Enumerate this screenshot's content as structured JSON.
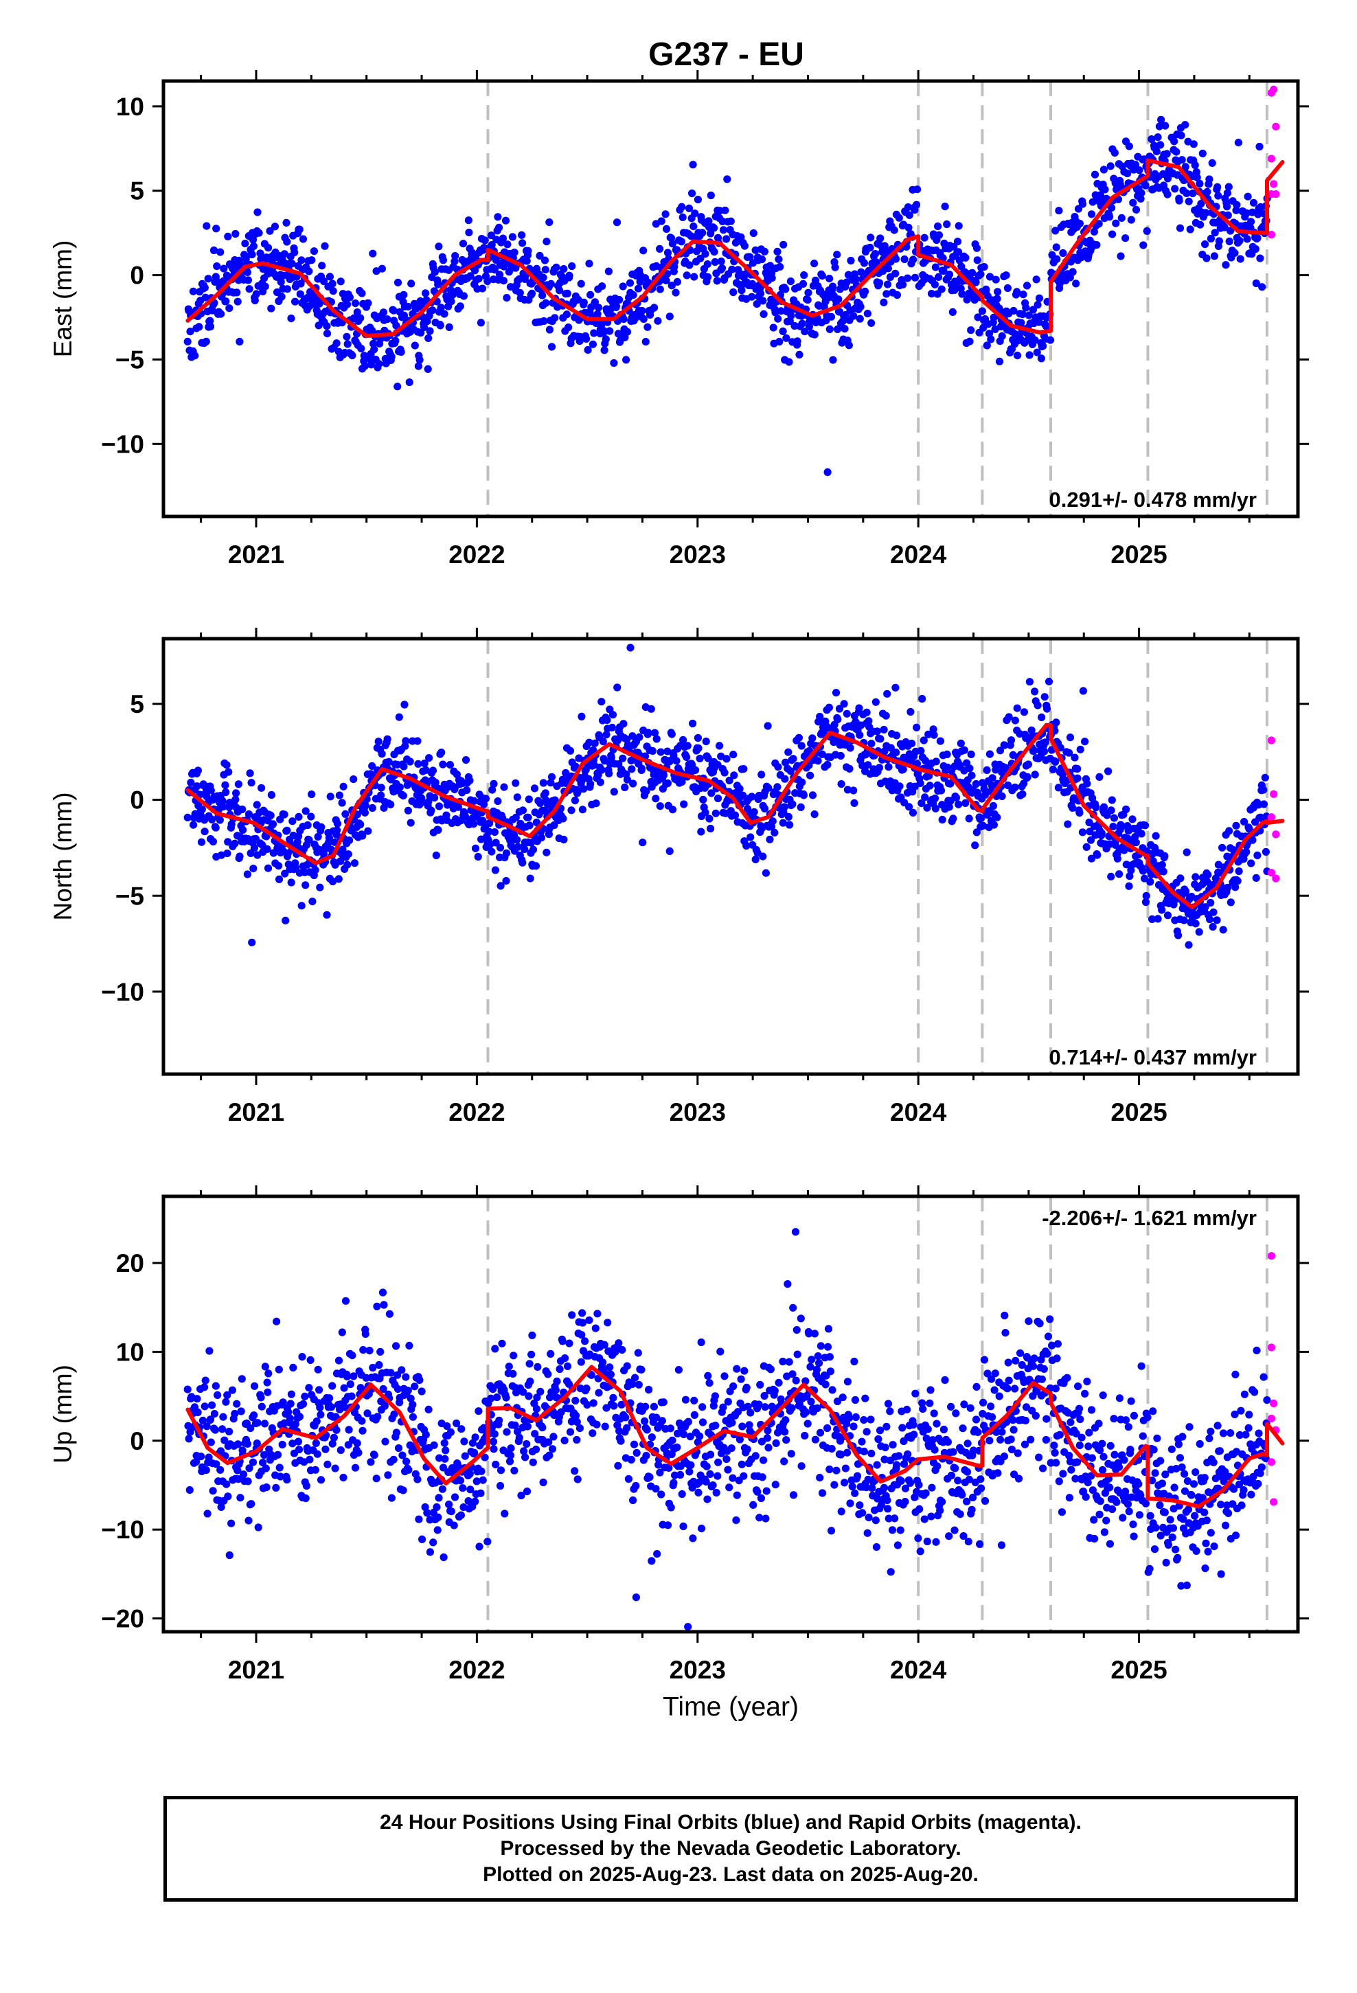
{
  "title": "G237 - EU",
  "colors": {
    "final_orbits": "#0000ff",
    "rapid_orbits": "#ff00ff",
    "model": "#ff0000",
    "events": "#c0c0c0",
    "frame": "#000000"
  },
  "footer": {
    "line1": "24 Hour Positions Using Final Orbits (blue) and Rapid Orbits (magenta).",
    "line2": "Processed by the Nevada Geodetic Laboratory.",
    "line3": "Plotted on 2025-Aug-23. Last data on 2025-Aug-20."
  },
  "chart_data": [
    {
      "type": "scatter",
      "component": "east",
      "ylabel": "East (mm)",
      "xlim": [
        2020.58,
        2025.72
      ],
      "ylim": [
        -14.3,
        11.5
      ],
      "yticks": [
        -10,
        -5,
        0,
        5,
        10
      ],
      "xticks": [
        2021,
        2022,
        2023,
        2024,
        2025
      ],
      "grid": false,
      "rate_label": "0.291+/- 0.478 mm/yr",
      "rate_label_position": "bottom-right",
      "event_lines": [
        2022.05,
        2024.0,
        2024.29,
        2024.6,
        2025.04,
        2025.58
      ],
      "series": [
        {
          "role": "final",
          "x_start": 2020.69,
          "x_end": 2025.58,
          "seed": 11,
          "noise": 1.3,
          "n": 1700
        },
        {
          "role": "rapid",
          "points": [
            [
              2025.6,
              10.8
            ],
            [
              2025.61,
              11.0
            ],
            [
              2025.62,
              8.8
            ],
            [
              2025.6,
              6.9
            ],
            [
              2025.61,
              5.4
            ],
            [
              2025.6,
              4.8
            ],
            [
              2025.62,
              4.8
            ],
            [
              2025.6,
              2.4
            ]
          ]
        }
      ],
      "model": [
        [
          2020.69,
          -2.7
        ],
        [
          2020.82,
          -1.2
        ],
        [
          2020.95,
          0.5
        ],
        [
          2021.03,
          0.7
        ],
        [
          2021.2,
          0.1
        ],
        [
          2021.35,
          -2.1
        ],
        [
          2021.5,
          -3.6
        ],
        [
          2021.62,
          -3.5
        ],
        [
          2021.75,
          -2.2
        ],
        [
          2021.9,
          0.0
        ],
        [
          2022.02,
          0.9
        ],
        [
          2022.05,
          0.9
        ],
        [
          2022.05,
          1.5
        ],
        [
          2022.2,
          0.6
        ],
        [
          2022.35,
          -1.4
        ],
        [
          2022.5,
          -2.6
        ],
        [
          2022.62,
          -2.6
        ],
        [
          2022.75,
          -1.3
        ],
        [
          2022.88,
          0.8
        ],
        [
          2022.98,
          2.0
        ],
        [
          2023.1,
          1.9
        ],
        [
          2023.25,
          0.1
        ],
        [
          2023.38,
          -1.6
        ],
        [
          2023.52,
          -2.4
        ],
        [
          2023.65,
          -1.8
        ],
        [
          2023.8,
          0.2
        ],
        [
          2023.95,
          2.1
        ],
        [
          2024.0,
          2.3
        ],
        [
          2024.0,
          1.2
        ],
        [
          2024.15,
          0.6
        ],
        [
          2024.29,
          -1.3
        ],
        [
          2024.29,
          -1.5
        ],
        [
          2024.42,
          -3.0
        ],
        [
          2024.55,
          -3.4
        ],
        [
          2024.6,
          -3.3
        ],
        [
          2024.6,
          -0.4
        ],
        [
          2024.72,
          1.9
        ],
        [
          2024.88,
          4.6
        ],
        [
          2025.03,
          5.8
        ],
        [
          2025.04,
          5.9
        ],
        [
          2025.04,
          6.8
        ],
        [
          2025.18,
          6.4
        ],
        [
          2025.32,
          4.1
        ],
        [
          2025.45,
          2.6
        ],
        [
          2025.56,
          2.5
        ],
        [
          2025.58,
          2.5
        ],
        [
          2025.58,
          5.6
        ],
        [
          2025.65,
          6.7
        ]
      ]
    },
    {
      "type": "scatter",
      "component": "north",
      "ylabel": "North (mm)",
      "xlim": [
        2020.58,
        2025.72
      ],
      "ylim": [
        -14.3,
        8.4
      ],
      "yticks": [
        -10,
        -5,
        0,
        5
      ],
      "xticks": [
        2021,
        2022,
        2023,
        2024,
        2025
      ],
      "grid": false,
      "rate_label": "0.714+/- 0.437 mm/yr",
      "rate_label_position": "bottom-right",
      "event_lines": [
        2022.05,
        2024.0,
        2024.29,
        2024.6,
        2025.04,
        2025.58
      ],
      "series": [
        {
          "role": "final",
          "x_start": 2020.69,
          "x_end": 2025.58,
          "seed": 23,
          "noise": 1.1,
          "n": 1700
        },
        {
          "role": "rapid",
          "points": [
            [
              2025.6,
              3.1
            ],
            [
              2025.61,
              0.3
            ],
            [
              2025.6,
              -0.9
            ],
            [
              2025.62,
              -1.8
            ],
            [
              2025.6,
              -3.8
            ],
            [
              2025.62,
              -4.1
            ]
          ]
        }
      ],
      "model": [
        [
          2020.69,
          0.5
        ],
        [
          2020.82,
          -0.7
        ],
        [
          2020.99,
          -1.2
        ],
        [
          2021.12,
          -2.2
        ],
        [
          2021.27,
          -3.3
        ],
        [
          2021.35,
          -2.9
        ],
        [
          2021.45,
          -0.4
        ],
        [
          2021.57,
          1.6
        ],
        [
          2021.7,
          1.1
        ],
        [
          2021.85,
          0.2
        ],
        [
          2022.02,
          -0.5
        ],
        [
          2022.05,
          -0.6
        ],
        [
          2022.05,
          -0.9
        ],
        [
          2022.15,
          -1.4
        ],
        [
          2022.24,
          -1.9
        ],
        [
          2022.35,
          -0.6
        ],
        [
          2022.48,
          1.9
        ],
        [
          2022.6,
          2.9
        ],
        [
          2022.75,
          2.1
        ],
        [
          2022.9,
          1.4
        ],
        [
          2023.05,
          1.0
        ],
        [
          2023.16,
          0.1
        ],
        [
          2023.24,
          -1.2
        ],
        [
          2023.32,
          -0.9
        ],
        [
          2023.45,
          1.4
        ],
        [
          2023.6,
          3.5
        ],
        [
          2023.72,
          3.0
        ],
        [
          2023.85,
          2.2
        ],
        [
          2023.98,
          1.7
        ],
        [
          2024.0,
          1.6
        ],
        [
          2024.15,
          1.2
        ],
        [
          2024.27,
          -0.5
        ],
        [
          2024.29,
          -0.6
        ],
        [
          2024.29,
          -0.5
        ],
        [
          2024.42,
          1.6
        ],
        [
          2024.58,
          3.9
        ],
        [
          2024.6,
          3.9
        ],
        [
          2024.6,
          3.2
        ],
        [
          2024.75,
          -0.3
        ],
        [
          2024.9,
          -2.0
        ],
        [
          2025.03,
          -2.9
        ],
        [
          2025.04,
          -2.9
        ],
        [
          2025.04,
          -3.3
        ],
        [
          2025.15,
          -4.8
        ],
        [
          2025.24,
          -5.6
        ],
        [
          2025.35,
          -4.6
        ],
        [
          2025.48,
          -2.1
        ],
        [
          2025.56,
          -1.2
        ],
        [
          2025.58,
          -1.1
        ],
        [
          2025.58,
          -1.2
        ],
        [
          2025.65,
          -1.1
        ]
      ]
    },
    {
      "type": "scatter",
      "component": "up",
      "ylabel": "Up (mm)",
      "xlim": [
        2020.58,
        2025.72
      ],
      "ylim": [
        -21.5,
        27.5
      ],
      "yticks": [
        -20,
        -10,
        0,
        10,
        20
      ],
      "xticks": [
        2021,
        2022,
        2023,
        2024,
        2025
      ],
      "xlabel": "Time (year)",
      "grid": false,
      "rate_label": "-2.206+/- 1.621 mm/yr",
      "rate_label_position": "top-right",
      "event_lines": [
        2022.05,
        2024.0,
        2024.29,
        2024.6,
        2025.04,
        2025.58
      ],
      "series": [
        {
          "role": "final",
          "x_start": 2020.69,
          "x_end": 2025.58,
          "seed": 37,
          "noise": 4.2,
          "n": 1700
        },
        {
          "role": "rapid",
          "points": [
            [
              2025.6,
              20.8
            ],
            [
              2025.6,
              10.5
            ],
            [
              2025.61,
              4.2
            ],
            [
              2025.6,
              2.5
            ],
            [
              2025.62,
              1.2
            ],
            [
              2025.6,
              -2.4
            ],
            [
              2025.61,
              -6.9
            ]
          ]
        }
      ],
      "model": [
        [
          2020.69,
          3.5
        ],
        [
          2020.78,
          -0.8
        ],
        [
          2020.87,
          -2.5
        ],
        [
          2021.0,
          -1.2
        ],
        [
          2021.12,
          1.3
        ],
        [
          2021.27,
          0.3
        ],
        [
          2021.4,
          2.8
        ],
        [
          2021.52,
          6.3
        ],
        [
          2021.65,
          3.2
        ],
        [
          2021.76,
          -2.0
        ],
        [
          2021.86,
          -4.8
        ],
        [
          2021.98,
          -2.4
        ],
        [
          2022.04,
          -1.0
        ],
        [
          2022.05,
          -0.8
        ],
        [
          2022.05,
          3.6
        ],
        [
          2022.15,
          3.7
        ],
        [
          2022.27,
          2.3
        ],
        [
          2022.4,
          4.9
        ],
        [
          2022.52,
          8.3
        ],
        [
          2022.65,
          5.6
        ],
        [
          2022.77,
          -0.8
        ],
        [
          2022.88,
          -2.6
        ],
        [
          2023.0,
          -0.8
        ],
        [
          2023.12,
          1.1
        ],
        [
          2023.25,
          0.4
        ],
        [
          2023.35,
          2.9
        ],
        [
          2023.48,
          6.3
        ],
        [
          2023.6,
          3.5
        ],
        [
          2023.72,
          -1.6
        ],
        [
          2023.83,
          -4.6
        ],
        [
          2023.94,
          -3.4
        ],
        [
          2024.0,
          -2.1
        ],
        [
          2024.12,
          -1.8
        ],
        [
          2024.27,
          -2.8
        ],
        [
          2024.29,
          -2.8
        ],
        [
          2024.29,
          0.3
        ],
        [
          2024.4,
          2.8
        ],
        [
          2024.52,
          6.5
        ],
        [
          2024.6,
          5.3
        ],
        [
          2024.6,
          4.3
        ],
        [
          2024.7,
          -0.8
        ],
        [
          2024.81,
          -3.9
        ],
        [
          2024.92,
          -3.8
        ],
        [
          2025.03,
          -0.6
        ],
        [
          2025.04,
          -0.7
        ],
        [
          2025.04,
          -6.5
        ],
        [
          2025.15,
          -6.7
        ],
        [
          2025.27,
          -7.4
        ],
        [
          2025.38,
          -5.6
        ],
        [
          2025.5,
          -2.0
        ],
        [
          2025.56,
          -1.5
        ],
        [
          2025.58,
          -1.6
        ],
        [
          2025.58,
          1.9
        ],
        [
          2025.65,
          -0.3
        ]
      ]
    }
  ]
}
